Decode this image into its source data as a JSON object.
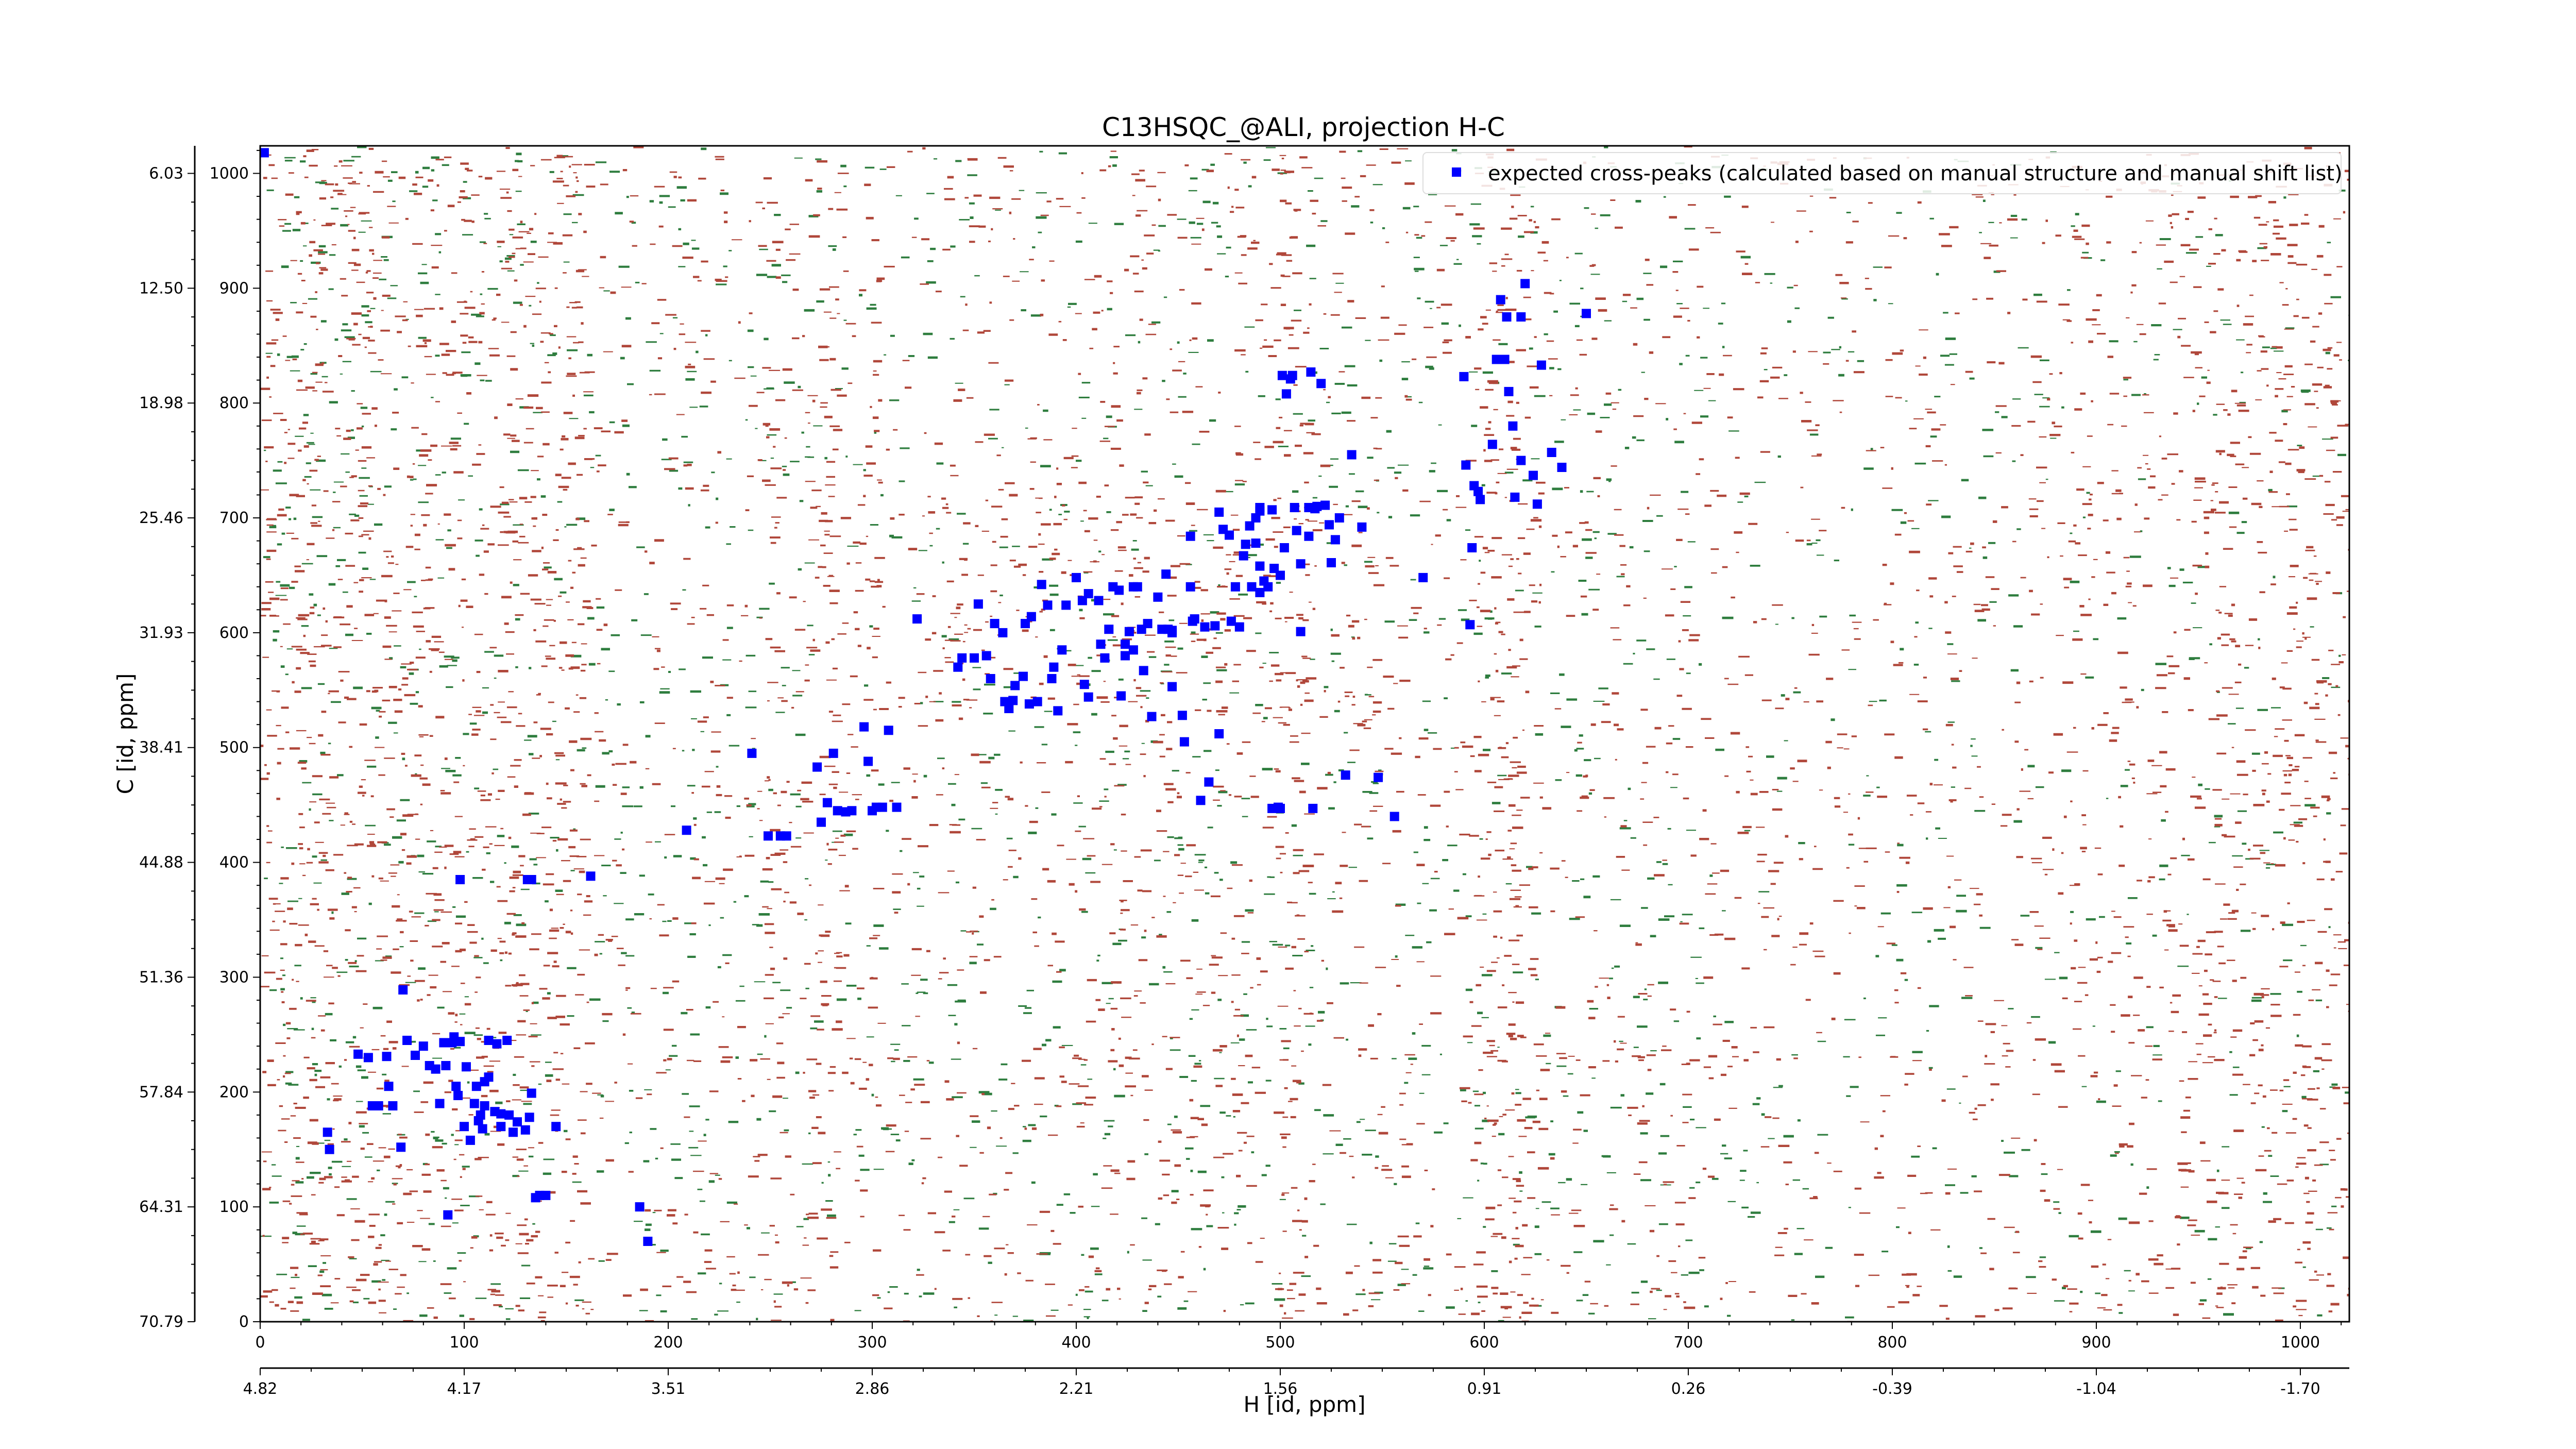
{
  "chart_data": {
    "type": "scatter",
    "title": "C13HSQC_@ALI, projection H-C",
    "xlabel": "H [id, ppm]",
    "ylabel": "C [id, ppm]",
    "xlim": [
      0,
      1024
    ],
    "ylim": [
      0,
      1024
    ],
    "x_ticks": [
      0,
      100,
      200,
      300,
      400,
      500,
      600,
      700,
      800,
      900,
      1000
    ],
    "y_ticks": [
      0,
      100,
      200,
      300,
      400,
      500,
      600,
      700,
      800,
      900,
      1000
    ],
    "x_ppm_ticks": [
      "4.82",
      "4.17",
      "3.51",
      "2.86",
      "2.21",
      "1.56",
      "0.91",
      "0.26",
      "-0.39",
      "-1.04",
      "-1.70"
    ],
    "y_ppm_ticks": [
      "70.79",
      "64.31",
      "57.84",
      "51.36",
      "44.88",
      "38.41",
      "31.93",
      "25.46",
      "18.98",
      "12.50",
      "6.03"
    ],
    "legend": {
      "label": "expected cross-peaks (calculated based on manual structure and manual shift list)",
      "position": "top-right"
    },
    "grid": false,
    "colors": {
      "positive_contour": "#b0473a",
      "negative_contour": "#2e7d3e",
      "peaks": "#0000ff"
    },
    "series": [
      {
        "name": "expected cross-peaks (calculated based on manual structure and manual shift list)",
        "points": [
          [
            2,
            1018
          ],
          [
            33,
            165
          ],
          [
            34,
            150
          ],
          [
            48,
            233
          ],
          [
            53,
            230
          ],
          [
            55,
            188
          ],
          [
            58,
            188
          ],
          [
            62,
            231
          ],
          [
            63,
            205
          ],
          [
            65,
            188
          ],
          [
            69,
            152
          ],
          [
            70,
            289
          ],
          [
            72,
            245
          ],
          [
            76,
            232
          ],
          [
            80,
            240
          ],
          [
            83,
            223
          ],
          [
            86,
            220
          ],
          [
            88,
            190
          ],
          [
            90,
            243
          ],
          [
            91,
            223
          ],
          [
            94,
            243
          ],
          [
            95,
            248
          ],
          [
            96,
            205
          ],
          [
            97,
            197
          ],
          [
            98,
            244
          ],
          [
            100,
            170
          ],
          [
            101,
            222
          ],
          [
            103,
            158
          ],
          [
            105,
            190
          ],
          [
            106,
            205
          ],
          [
            107,
            175
          ],
          [
            108,
            180
          ],
          [
            109,
            168
          ],
          [
            110,
            188
          ],
          [
            110,
            209
          ],
          [
            112,
            245
          ],
          [
            112,
            213
          ],
          [
            115,
            183
          ],
          [
            116,
            242
          ],
          [
            118,
            181
          ],
          [
            118,
            170
          ],
          [
            121,
            245
          ],
          [
            122,
            180
          ],
          [
            124,
            165
          ],
          [
            126,
            174
          ],
          [
            130,
            167
          ],
          [
            132,
            178
          ],
          [
            133,
            199
          ],
          [
            135,
            108
          ],
          [
            137,
            110
          ],
          [
            140,
            110
          ],
          [
            145,
            170
          ],
          [
            98,
            385
          ],
          [
            131,
            385
          ],
          [
            133,
            385
          ],
          [
            162,
            388
          ],
          [
            92,
            93
          ],
          [
            186,
            100
          ],
          [
            190,
            70
          ],
          [
            209,
            428
          ],
          [
            241,
            495
          ],
          [
            249,
            423
          ],
          [
            255,
            423
          ],
          [
            258,
            423
          ],
          [
            273,
            483
          ],
          [
            275,
            435
          ],
          [
            278,
            452
          ],
          [
            281,
            495
          ],
          [
            283,
            445
          ],
          [
            287,
            444
          ],
          [
            290,
            445
          ],
          [
            296,
            518
          ],
          [
            298,
            488
          ],
          [
            300,
            445
          ],
          [
            302,
            448
          ],
          [
            305,
            448
          ],
          [
            308,
            515
          ],
          [
            312,
            448
          ],
          [
            322,
            612
          ],
          [
            342,
            570
          ],
          [
            344,
            578
          ],
          [
            350,
            578
          ],
          [
            352,
            625
          ],
          [
            356,
            580
          ],
          [
            358,
            560
          ],
          [
            360,
            608
          ],
          [
            364,
            600
          ],
          [
            365,
            540
          ],
          [
            367,
            534
          ],
          [
            369,
            541
          ],
          [
            370,
            554
          ],
          [
            374,
            562
          ],
          [
            375,
            608
          ],
          [
            377,
            538
          ],
          [
            378,
            614
          ],
          [
            381,
            540
          ],
          [
            383,
            642
          ],
          [
            386,
            624
          ],
          [
            388,
            560
          ],
          [
            389,
            570
          ],
          [
            391,
            532
          ],
          [
            393,
            585
          ],
          [
            395,
            624
          ],
          [
            400,
            648
          ],
          [
            403,
            628
          ],
          [
            404,
            555
          ],
          [
            406,
            634
          ],
          [
            406,
            544
          ],
          [
            411,
            628
          ],
          [
            412,
            590
          ],
          [
            414,
            578
          ],
          [
            416,
            603
          ],
          [
            418,
            640
          ],
          [
            421,
            637
          ],
          [
            422,
            545
          ],
          [
            424,
            580
          ],
          [
            424,
            590
          ],
          [
            426,
            601
          ],
          [
            428,
            640
          ],
          [
            428,
            585
          ],
          [
            430,
            640
          ],
          [
            432,
            603
          ],
          [
            433,
            567
          ],
          [
            435,
            608
          ],
          [
            437,
            527
          ],
          [
            440,
            631
          ],
          [
            442,
            603
          ],
          [
            444,
            651
          ],
          [
            445,
            603
          ],
          [
            447,
            600
          ],
          [
            447,
            553
          ],
          [
            447,
            602
          ],
          [
            452,
            528
          ],
          [
            453,
            505
          ],
          [
            456,
            684
          ],
          [
            456,
            640
          ],
          [
            457,
            610
          ],
          [
            458,
            612
          ],
          [
            461,
            454
          ],
          [
            463,
            605
          ],
          [
            465,
            470
          ],
          [
            468,
            606
          ],
          [
            470,
            705
          ],
          [
            470,
            512
          ],
          [
            472,
            690
          ],
          [
            475,
            685
          ],
          [
            476,
            610
          ],
          [
            478,
            640
          ],
          [
            480,
            605
          ],
          [
            482,
            667
          ],
          [
            483,
            677
          ],
          [
            485,
            693
          ],
          [
            486,
            640
          ],
          [
            488,
            700
          ],
          [
            488,
            678
          ],
          [
            490,
            706
          ],
          [
            490,
            709
          ],
          [
            490,
            658
          ],
          [
            490,
            635
          ],
          [
            492,
            645
          ],
          [
            494,
            640
          ],
          [
            496,
            707
          ],
          [
            496,
            447
          ],
          [
            497,
            656
          ],
          [
            499,
            448
          ],
          [
            500,
            650
          ],
          [
            500,
            447
          ],
          [
            501,
            824
          ],
          [
            502,
            674
          ],
          [
            503,
            808
          ],
          [
            505,
            821
          ],
          [
            506,
            824
          ],
          [
            507,
            709
          ],
          [
            508,
            689
          ],
          [
            510,
            660
          ],
          [
            510,
            601
          ],
          [
            514,
            684
          ],
          [
            514,
            709
          ],
          [
            515,
            827
          ],
          [
            516,
            447
          ],
          [
            517,
            708
          ],
          [
            518,
            710
          ],
          [
            520,
            817
          ],
          [
            522,
            711
          ],
          [
            524,
            694
          ],
          [
            525,
            661
          ],
          [
            527,
            681
          ],
          [
            529,
            700
          ],
          [
            532,
            476
          ],
          [
            535,
            755
          ],
          [
            540,
            692
          ],
          [
            548,
            474
          ],
          [
            556,
            440
          ],
          [
            570,
            648
          ],
          [
            590,
            823
          ],
          [
            591,
            746
          ],
          [
            593,
            607
          ],
          [
            594,
            674
          ],
          [
            595,
            728
          ],
          [
            597,
            723
          ],
          [
            598,
            716
          ],
          [
            604,
            764
          ],
          [
            606,
            838
          ],
          [
            608,
            890
          ],
          [
            610,
            838
          ],
          [
            611,
            875
          ],
          [
            612,
            810
          ],
          [
            614,
            780
          ],
          [
            615,
            718
          ],
          [
            618,
            750
          ],
          [
            618,
            875
          ],
          [
            620,
            904
          ],
          [
            624,
            737
          ],
          [
            626,
            712
          ],
          [
            628,
            833
          ],
          [
            633,
            757
          ],
          [
            638,
            744
          ],
          [
            650,
            878
          ]
        ]
      }
    ]
  }
}
